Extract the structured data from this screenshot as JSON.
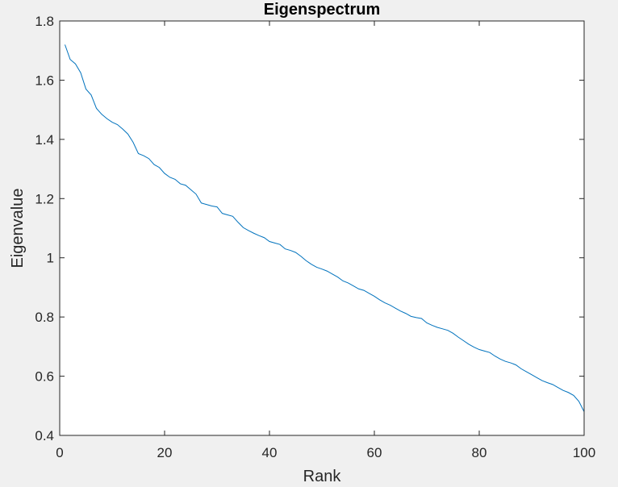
{
  "chart_data": {
    "type": "line",
    "title": "Eigenspectrum",
    "xlabel": "Rank",
    "ylabel": "Eigenvalue",
    "xlim": [
      0,
      100
    ],
    "ylim": [
      0.4,
      1.8
    ],
    "xticks": [
      0,
      20,
      40,
      60,
      80,
      100
    ],
    "yticks": [
      0.4,
      0.6,
      0.8,
      1,
      1.2,
      1.4,
      1.6,
      1.8
    ],
    "xtick_labels": [
      "0",
      "20",
      "40",
      "60",
      "80",
      "100"
    ],
    "ytick_labels": [
      "0.4",
      "0.6",
      "0.8",
      "1",
      "1.2",
      "1.4",
      "1.6",
      "1.8"
    ],
    "grid": false,
    "line_color": "#0072bd",
    "x": [
      1,
      2,
      3,
      4,
      5,
      6,
      7,
      8,
      9,
      10,
      11,
      12,
      13,
      14,
      15,
      16,
      17,
      18,
      19,
      20,
      21,
      22,
      23,
      24,
      25,
      26,
      27,
      28,
      29,
      30,
      31,
      32,
      33,
      34,
      35,
      36,
      37,
      38,
      39,
      40,
      41,
      42,
      43,
      44,
      45,
      46,
      47,
      48,
      49,
      50,
      51,
      52,
      53,
      54,
      55,
      56,
      57,
      58,
      59,
      60,
      61,
      62,
      63,
      64,
      65,
      66,
      67,
      68,
      69,
      70,
      71,
      72,
      73,
      74,
      75,
      76,
      77,
      78,
      79,
      80,
      81,
      82,
      83,
      84,
      85,
      86,
      87,
      88,
      89,
      90,
      91,
      92,
      93,
      94,
      95,
      96,
      97,
      98,
      99,
      100
    ],
    "y": [
      1.72,
      1.67,
      1.655,
      1.625,
      1.57,
      1.55,
      1.505,
      1.485,
      1.47,
      1.458,
      1.45,
      1.435,
      1.418,
      1.39,
      1.352,
      1.345,
      1.335,
      1.315,
      1.305,
      1.285,
      1.272,
      1.265,
      1.25,
      1.245,
      1.23,
      1.215,
      1.185,
      1.18,
      1.175,
      1.172,
      1.15,
      1.145,
      1.14,
      1.12,
      1.102,
      1.092,
      1.083,
      1.075,
      1.068,
      1.055,
      1.05,
      1.045,
      1.03,
      1.025,
      1.018,
      1.005,
      0.99,
      0.978,
      0.968,
      0.962,
      0.955,
      0.945,
      0.935,
      0.922,
      0.915,
      0.905,
      0.895,
      0.89,
      0.88,
      0.87,
      0.858,
      0.848,
      0.84,
      0.83,
      0.82,
      0.812,
      0.802,
      0.798,
      0.795,
      0.78,
      0.772,
      0.765,
      0.76,
      0.755,
      0.745,
      0.732,
      0.72,
      0.708,
      0.698,
      0.69,
      0.685,
      0.68,
      0.668,
      0.658,
      0.65,
      0.645,
      0.638,
      0.625,
      0.615,
      0.605,
      0.595,
      0.585,
      0.578,
      0.572,
      0.562,
      0.552,
      0.545,
      0.535,
      0.515,
      0.48
    ]
  }
}
